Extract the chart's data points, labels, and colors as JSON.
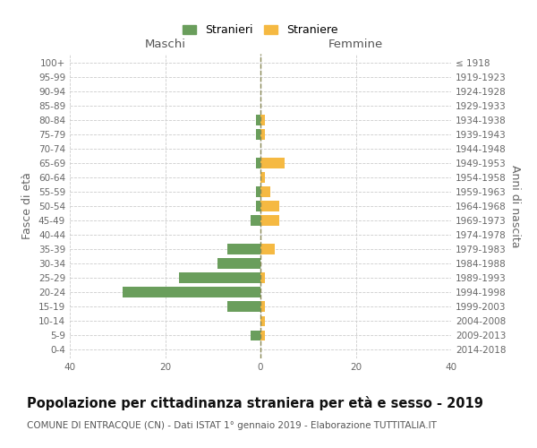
{
  "age_groups": [
    "0-4",
    "5-9",
    "10-14",
    "15-19",
    "20-24",
    "25-29",
    "30-34",
    "35-39",
    "40-44",
    "45-49",
    "50-54",
    "55-59",
    "60-64",
    "65-69",
    "70-74",
    "75-79",
    "80-84",
    "85-89",
    "90-94",
    "95-99",
    "100+"
  ],
  "birth_years": [
    "2014-2018",
    "2009-2013",
    "2004-2008",
    "1999-2003",
    "1994-1998",
    "1989-1993",
    "1984-1988",
    "1979-1983",
    "1974-1978",
    "1969-1973",
    "1964-1968",
    "1959-1963",
    "1954-1958",
    "1949-1953",
    "1944-1948",
    "1939-1943",
    "1934-1938",
    "1929-1933",
    "1924-1928",
    "1919-1923",
    "≤ 1918"
  ],
  "males": [
    0,
    2,
    0,
    7,
    29,
    17,
    9,
    7,
    0,
    2,
    1,
    1,
    0,
    1,
    0,
    1,
    1,
    0,
    0,
    0,
    0
  ],
  "females": [
    0,
    1,
    1,
    1,
    0,
    1,
    0,
    3,
    0,
    4,
    4,
    2,
    1,
    5,
    0,
    1,
    1,
    0,
    0,
    0,
    0
  ],
  "male_color": "#6a9e5c",
  "female_color": "#f5b942",
  "grid_color": "#cccccc",
  "xlim": [
    -40,
    40
  ],
  "title": "Popolazione per cittadinanza straniera per età e sesso - 2019",
  "subtitle": "COMUNE DI ENTRACQUE (CN) - Dati ISTAT 1° gennaio 2019 - Elaborazione TUTTITALIA.IT",
  "xlabel_left": "Maschi",
  "xlabel_right": "Femmine",
  "ylabel_left": "Fasce di età",
  "ylabel_right": "Anni di nascita",
  "legend_male": "Stranieri",
  "legend_female": "Straniere",
  "xticks": [
    -40,
    -20,
    0,
    20,
    40
  ],
  "title_fontsize": 10.5,
  "subtitle_fontsize": 7.5,
  "label_fontsize": 9,
  "tick_fontsize": 7.5,
  "bar_height": 0.72
}
